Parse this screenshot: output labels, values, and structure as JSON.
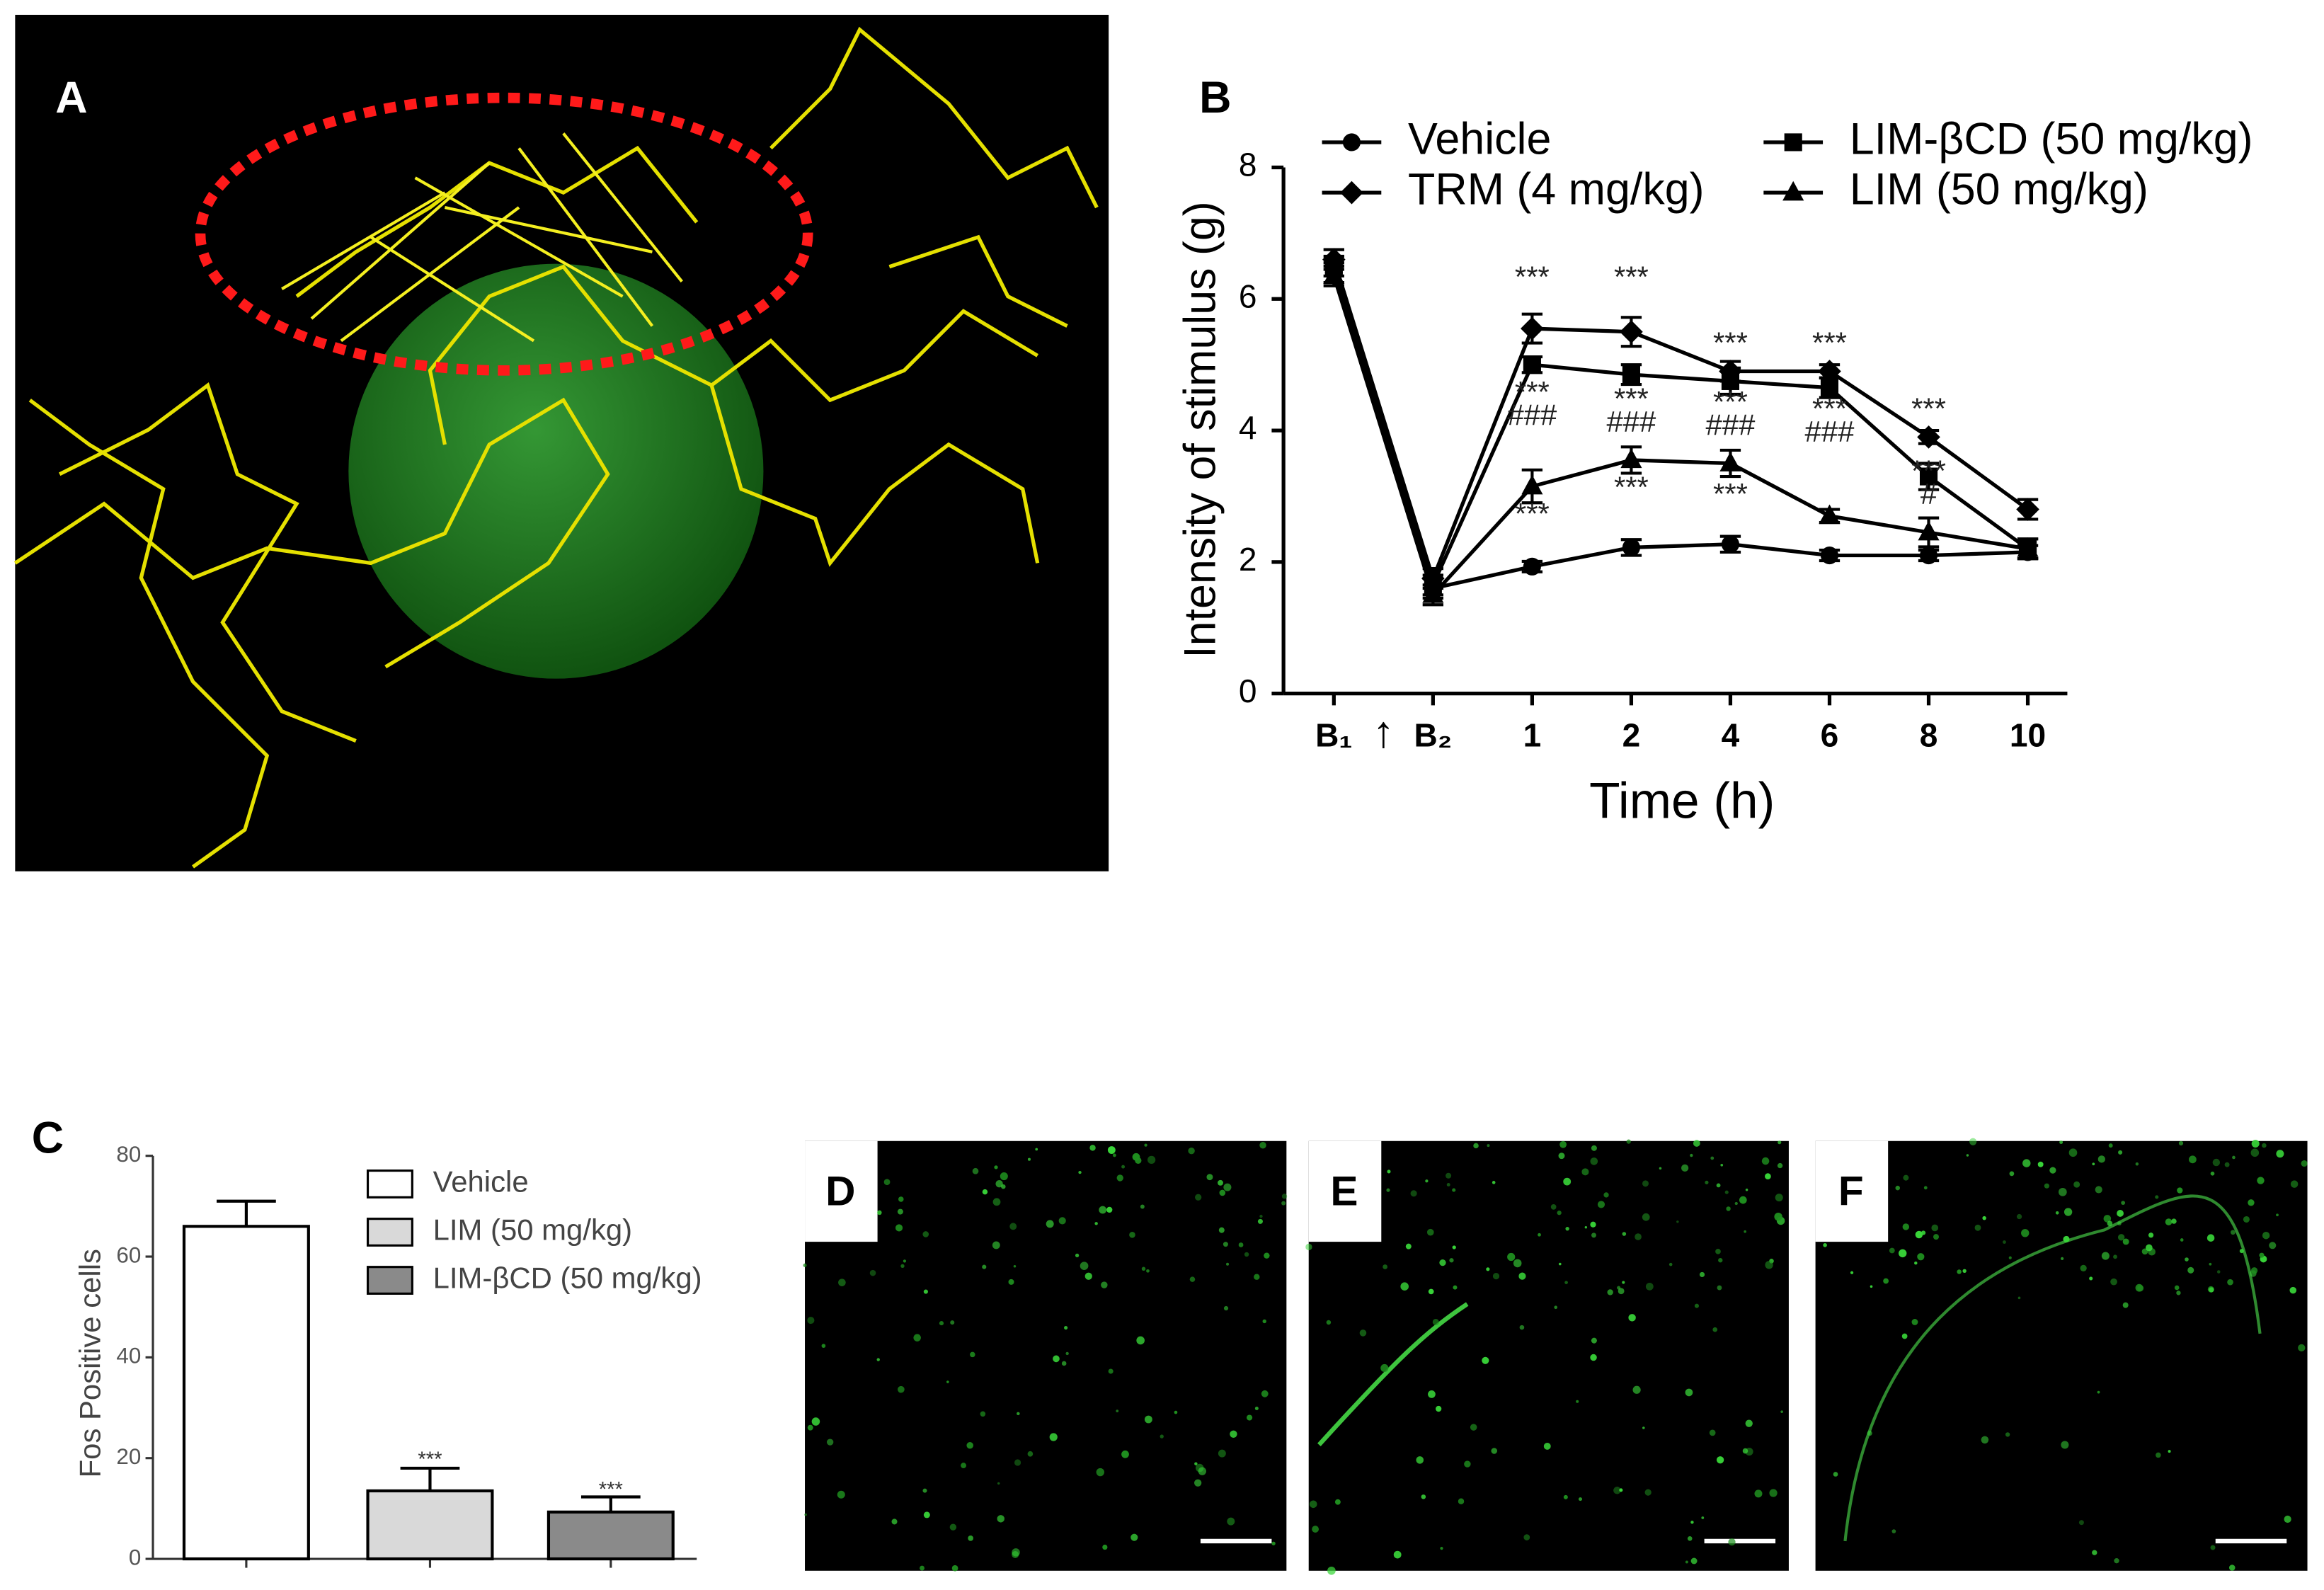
{
  "panel_labels": [
    "A",
    "B",
    "C",
    "D",
    "E",
    "F"
  ],
  "chart_data": [
    {
      "type": "line",
      "x_label": "Time (h)",
      "y_label": "Intensity of stimulus (g)",
      "categories": [
        "B₁",
        "B₂",
        "1",
        "2",
        "4",
        "6",
        "8",
        "10"
      ],
      "treatment_marker": "↑",
      "ylim": [
        0,
        8
      ],
      "yticks": [
        0,
        2,
        4,
        6,
        8
      ],
      "series": [
        {
          "name": "Vehicle",
          "color": "#000000",
          "marker": "circle",
          "values": [
            6.4,
            1.6,
            1.93,
            2.22,
            2.27,
            2.1,
            2.1,
            2.15
          ],
          "errors": [
            0.15,
            0.15,
            0.08,
            0.12,
            0.12,
            0.08,
            0.08,
            0.1
          ]
        },
        {
          "name": "TRM (4 mg/kg)",
          "color": "#000000",
          "marker": "diamond",
          "values": [
            6.6,
            1.75,
            5.55,
            5.5,
            4.9,
            4.9,
            3.9,
            2.8
          ],
          "errors": [
            0.15,
            0.15,
            0.22,
            0.22,
            0.15,
            0.1,
            0.1,
            0.15
          ]
        },
        {
          "name": "LIM-βCD (50 mg/kg)",
          "color": "#000000",
          "marker": "square",
          "values": [
            6.5,
            1.65,
            5.0,
            4.85,
            4.75,
            4.65,
            3.3,
            2.2
          ],
          "errors": [
            0.15,
            0.15,
            0.12,
            0.15,
            0.2,
            0.15,
            0.2,
            0.15
          ]
        },
        {
          "name": "LIM (50 mg/kg)",
          "color": "#000000",
          "marker": "triangle",
          "values": [
            6.35,
            1.5,
            3.15,
            3.55,
            3.5,
            2.7,
            2.45,
            2.2
          ],
          "errors": [
            0.15,
            0.15,
            0.25,
            0.2,
            0.2,
            0.1,
            0.22,
            0.15
          ]
        }
      ],
      "annotations": [
        {
          "text": "***",
          "x": "1",
          "y": 6.3
        },
        {
          "text": "***",
          "x": "1",
          "y": 4.55
        },
        {
          "text": "###",
          "x": "1",
          "y": 4.2
        },
        {
          "text": "***",
          "x": "1",
          "y": 2.7
        },
        {
          "text": "***",
          "x": "2",
          "y": 6.3
        },
        {
          "text": "***",
          "x": "2",
          "y": 4.45
        },
        {
          "text": "###",
          "x": "2",
          "y": 4.1
        },
        {
          "text": "***",
          "x": "2",
          "y": 3.1
        },
        {
          "text": "***",
          "x": "4",
          "y": 5.3
        },
        {
          "text": "***",
          "x": "4",
          "y": 4.4
        },
        {
          "text": "###",
          "x": "4",
          "y": 4.05
        },
        {
          "text": "***",
          "x": "4",
          "y": 3.0
        },
        {
          "text": "***",
          "x": "6",
          "y": 5.3
        },
        {
          "text": "***",
          "x": "6",
          "y": 4.3
        },
        {
          "text": "###",
          "x": "6",
          "y": 3.95
        },
        {
          "text": "***",
          "x": "8",
          "y": 4.3
        },
        {
          "text": "***",
          "x": "8",
          "y": 3.35
        },
        {
          "text": "#",
          "x": "8",
          "y": 3.0
        }
      ]
    },
    {
      "type": "bar",
      "y_label": "Fos Positive cells",
      "categories": [
        null,
        null,
        null
      ],
      "legend": [
        "Vehicle",
        "LIM (50 mg/kg)",
        "LIM-βCD (50 mg/kg)"
      ],
      "colors": [
        "#ffffff",
        "#d9d9d9",
        "#8a8a8a"
      ],
      "values": [
        66,
        13.5,
        9.3
      ],
      "errors": [
        5,
        4.5,
        3
      ],
      "ylim": [
        0,
        80
      ],
      "yticks": [
        0,
        20,
        40,
        60,
        80
      ],
      "annotations": [
        {
          "text": "***",
          "x": 1,
          "y": 19.5
        },
        {
          "text": "***",
          "x": 2,
          "y": 13.5
        }
      ]
    }
  ]
}
